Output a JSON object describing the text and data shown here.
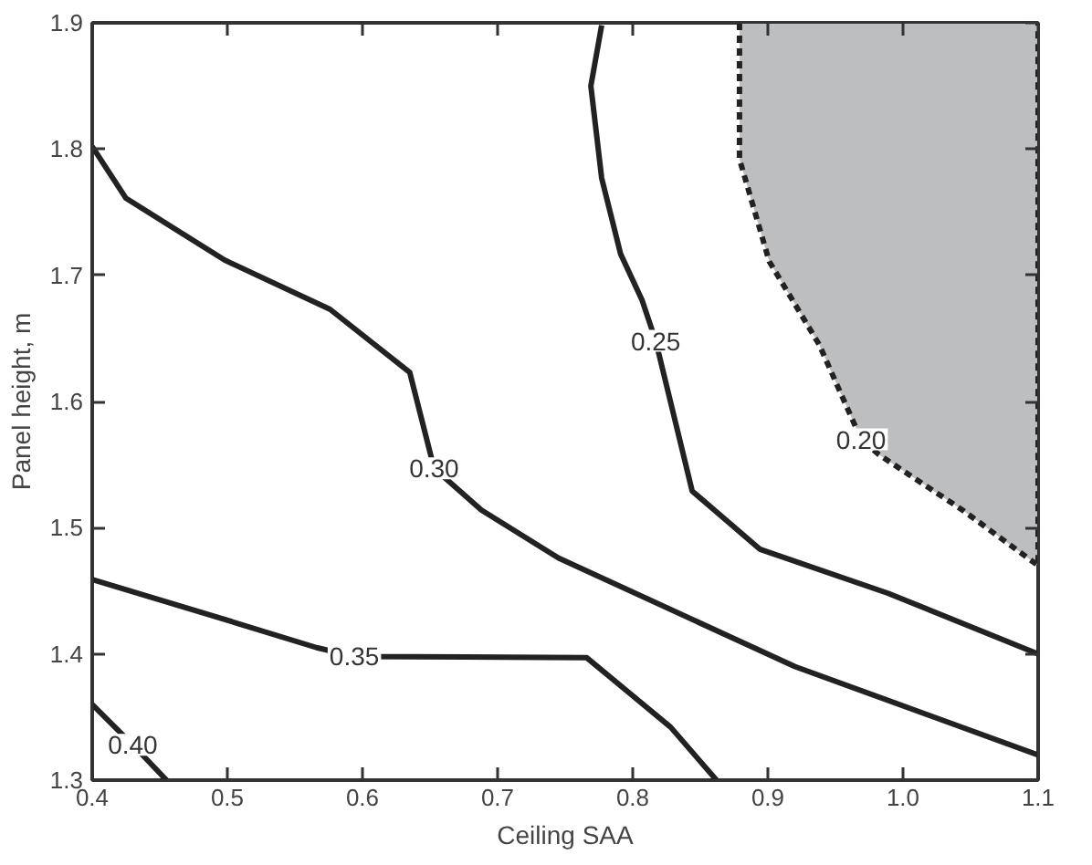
{
  "chart_data": {
    "type": "line",
    "xlabel": "Ceiling SAA",
    "ylabel": "Panel height, m",
    "xlim": [
      0.4,
      1.1
    ],
    "xticks": [
      {
        "value": 0.4,
        "label": "0.4"
      },
      {
        "value": 0.5,
        "label": "0.5"
      },
      {
        "value": 0.6,
        "label": "0.6"
      },
      {
        "value": 0.7,
        "label": "0.7"
      },
      {
        "value": 0.8,
        "label": "0.8"
      },
      {
        "value": 0.9,
        "label": "0.9"
      },
      {
        "value": 1.0,
        "label": "1.0"
      },
      {
        "value": 1.1,
        "label": "1.1"
      }
    ],
    "ylim": [
      1.3,
      1.9
    ],
    "yticks": [
      {
        "value": 1.3,
        "label": "1.3"
      },
      {
        "value": 1.4,
        "label": "1.4"
      },
      {
        "value": 1.5,
        "label": "1.5"
      },
      {
        "value": 1.6,
        "label": "1.6"
      },
      {
        "value": 1.7,
        "label": "1.7"
      },
      {
        "value": 1.8,
        "label": "1.8"
      },
      {
        "value": 1.9,
        "label": "1.9"
      }
    ],
    "grid": false,
    "line_style": "solid",
    "series": [
      {
        "name": "0.40",
        "color": "#222222",
        "x": [
          0.4,
          0.43,
          0.455
        ],
        "values": [
          1.36,
          1.328,
          1.3
        ]
      },
      {
        "name": "0.35",
        "color": "#222222",
        "x": [
          0.4,
          0.502,
          0.566,
          0.594,
          0.766,
          0.828,
          0.862
        ],
        "values": [
          1.459,
          1.426,
          1.405,
          1.398,
          1.397,
          1.342,
          1.3
        ]
      },
      {
        "name": "0.30",
        "color": "#222222",
        "x": [
          0.4,
          0.425,
          0.498,
          0.576,
          0.635,
          0.653,
          0.688,
          0.745,
          0.92,
          1.1
        ],
        "values": [
          1.802,
          1.761,
          1.712,
          1.673,
          1.623,
          1.547,
          1.514,
          1.476,
          1.39,
          1.32
        ]
      },
      {
        "name": "0.25",
        "color": "#222222",
        "x": [
          0.777,
          0.769,
          0.777,
          0.791,
          0.807,
          0.817,
          0.844,
          0.894,
          0.989,
          1.1
        ],
        "values": [
          1.898,
          1.85,
          1.777,
          1.717,
          1.68,
          1.648,
          1.529,
          1.483,
          1.448,
          1.4
        ]
      },
      {
        "name": "0.20",
        "type": "area",
        "line_style": "dashed",
        "color": "#bcbec0",
        "x": [
          0.879,
          0.879,
          0.901,
          0.938,
          0.969,
          0.982,
          1.044,
          1.1,
          1.1
        ],
        "values": [
          1.9,
          1.792,
          1.711,
          1.645,
          1.57,
          1.558,
          1.514,
          1.47,
          1.9
        ]
      }
    ]
  }
}
